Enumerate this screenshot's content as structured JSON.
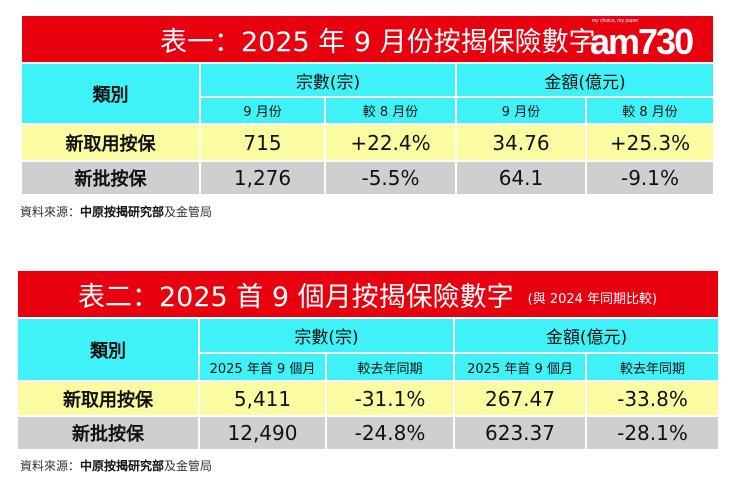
{
  "table1": {
    "title": "表一：2025 年 9 月份按揭保險數字",
    "logo": "am730",
    "logo_tagline": "my choice, my paper",
    "category_header": "類別",
    "group_headers": [
      "宗數(宗)",
      "金額(億元)"
    ],
    "sub_headers": [
      "9 月份",
      "較 8 月份",
      "9 月份",
      "較 8 月份"
    ],
    "rows": [
      {
        "label": "新取用按保",
        "values": [
          "715",
          "+22.4%",
          "34.76",
          "+25.3%"
        ]
      },
      {
        "label": "新批按保",
        "values": [
          "1,276",
          "-5.5%",
          "64.1",
          "-9.1%"
        ]
      }
    ],
    "source_prefix": "資料來源：",
    "source_bold": "中原按揭研究部",
    "source_suffix": "及金管局"
  },
  "table2": {
    "title": "表二：2025 首 9 個月按揭保險數字",
    "subtitle": "(與 2024 年同期比較)",
    "category_header": "類別",
    "group_headers": [
      "宗數(宗)",
      "金額(億元)"
    ],
    "sub_headers": [
      "2025 年首 9 個月",
      "較去年同期",
      "2025 年首 9 個月",
      "較去年同期"
    ],
    "rows": [
      {
        "label": "新取用按保",
        "values": [
          "5,411",
          "-31.1%",
          "267.47",
          "-33.8%"
        ]
      },
      {
        "label": "新批按保",
        "values": [
          "12,490",
          "-24.8%",
          "623.37",
          "-28.1%"
        ]
      }
    ],
    "source_prefix": "資料來源：",
    "source_bold": "中原按揭研究部",
    "source_suffix": "及金管局"
  },
  "colors": {
    "title_bg": "#e8000e",
    "header_bg": "#3ef2f7",
    "row1_bg": "#fbfba1",
    "row2_bg": "#cfcfcf"
  }
}
